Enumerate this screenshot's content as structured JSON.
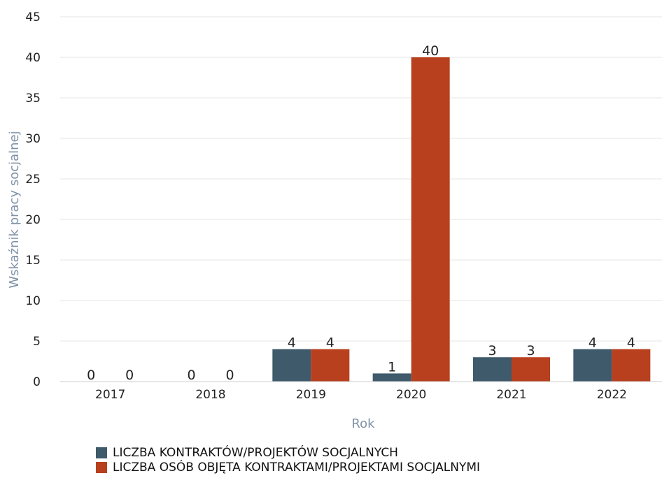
{
  "chart_data": {
    "type": "bar",
    "categories": [
      "2017",
      "2018",
      "2019",
      "2020",
      "2021",
      "2022"
    ],
    "series": [
      {
        "name": "LICZBA KONTRAKTÓW/PROJEKTÓW SOCJALNYCH",
        "values": [
          0,
          0,
          4,
          1,
          3,
          4
        ],
        "color": "#3e5a6b"
      },
      {
        "name": "LICZBA OSÓB OBJĘTA KONTRAKTAMI/PROJEKTAMI SOCJALNYMI",
        "values": [
          0,
          0,
          4,
          40,
          3,
          4
        ],
        "color": "#b8401e"
      }
    ],
    "title": "",
    "xlabel": "Rok",
    "ylabel": "Wskaźnik pracy socjalnej",
    "ylim": [
      0,
      45
    ],
    "yticks": [
      0,
      5,
      10,
      15,
      20,
      25,
      30,
      35,
      40,
      45
    ],
    "grid": true,
    "legend_position": "bottom-left"
  }
}
